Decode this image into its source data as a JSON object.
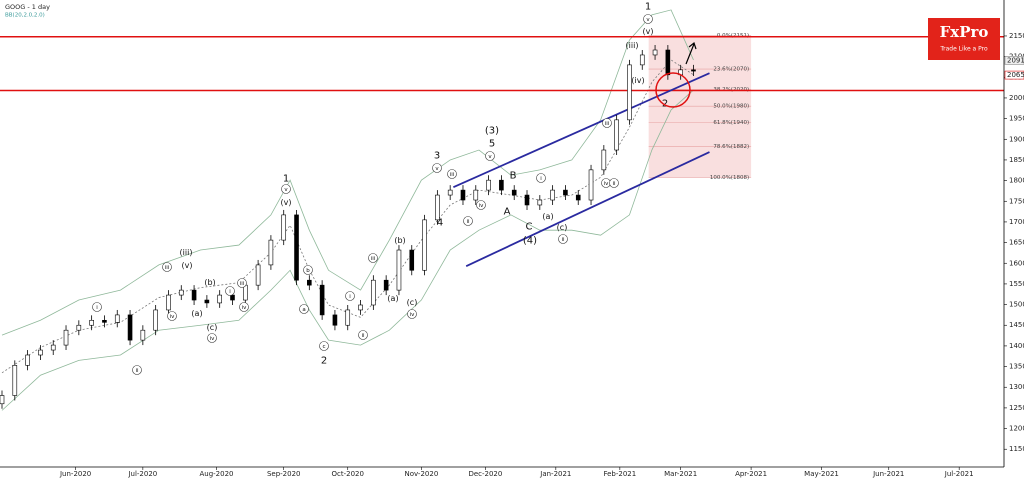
{
  "chart_data": {
    "type": "candlestick",
    "title": "GOOG  - 1 day",
    "subtitle": "BB(20,2.0,2.0)",
    "brand": {
      "name": "FxPro",
      "tagline": "Trade Like a Pro"
    },
    "x": [
      0,
      4,
      8,
      12,
      16,
      20,
      24,
      28,
      32,
      36,
      40,
      44,
      48,
      52,
      56,
      60,
      64,
      68,
      72,
      76,
      80,
      84,
      88,
      92,
      96,
      100,
      104,
      108,
      112,
      116,
      120,
      124,
      128,
      132,
      136,
      140,
      144,
      148,
      152,
      156,
      160,
      164,
      168,
      172,
      176,
      180,
      184,
      188,
      192,
      196,
      200,
      204,
      208,
      212,
      216
    ],
    "open": [
      1260,
      1280,
      1353,
      1378,
      1390,
      1402,
      1438,
      1450,
      1462,
      1457,
      1475,
      1414,
      1438,
      1487,
      1523,
      1535,
      1511,
      1504,
      1523,
      1511,
      1547,
      1596,
      1656,
      1717,
      1559,
      1547,
      1475,
      1450,
      1487,
      1499,
      1559,
      1535,
      1632,
      1583,
      1705,
      1765,
      1777,
      1753,
      1777,
      1801,
      1777,
      1765,
      1741,
      1753,
      1777,
      1765,
      1753,
      1826,
      1874,
      1947,
      2080,
      2104,
      2116,
      2056,
      2068
    ],
    "high": [
      1292,
      1365,
      1390,
      1402,
      1414,
      1450,
      1462,
      1474,
      1474,
      1487,
      1487,
      1450,
      1499,
      1535,
      1547,
      1547,
      1523,
      1535,
      1535,
      1559,
      1608,
      1668,
      1729,
      1729,
      1571,
      1559,
      1487,
      1499,
      1511,
      1571,
      1571,
      1644,
      1644,
      1717,
      1777,
      1789,
      1789,
      1789,
      1813,
      1813,
      1789,
      1777,
      1765,
      1789,
      1789,
      1777,
      1838,
      1886,
      1959,
      2092,
      2116,
      2128,
      2128,
      2080,
      2080
    ],
    "low": [
      1248,
      1268,
      1341,
      1366,
      1378,
      1390,
      1426,
      1438,
      1445,
      1445,
      1402,
      1402,
      1426,
      1475,
      1511,
      1499,
      1492,
      1492,
      1499,
      1499,
      1535,
      1584,
      1644,
      1547,
      1535,
      1463,
      1438,
      1438,
      1475,
      1487,
      1523,
      1523,
      1571,
      1571,
      1693,
      1753,
      1741,
      1741,
      1765,
      1765,
      1753,
      1729,
      1729,
      1741,
      1753,
      1741,
      1741,
      1814,
      1862,
      1935,
      2068,
      2092,
      2044,
      2044,
      2053
    ],
    "close": [
      1280,
      1353,
      1378,
      1390,
      1402,
      1438,
      1450,
      1462,
      1457,
      1475,
      1414,
      1438,
      1487,
      1523,
      1535,
      1511,
      1504,
      1523,
      1511,
      1547,
      1596,
      1656,
      1717,
      1559,
      1547,
      1475,
      1450,
      1487,
      1499,
      1559,
      1535,
      1632,
      1583,
      1705,
      1765,
      1777,
      1753,
      1777,
      1801,
      1777,
      1765,
      1741,
      1753,
      1777,
      1765,
      1753,
      1826,
      1874,
      1947,
      2080,
      2104,
      2116,
      2056,
      2068,
      2065
    ],
    "bands": {
      "x": [
        0,
        12,
        24,
        37,
        49,
        62,
        74,
        84,
        90,
        96,
        102,
        112,
        121,
        131,
        140,
        149,
        159,
        168,
        178,
        187,
        196,
        203,
        209,
        216
      ],
      "upper": [
        1426,
        1462,
        1511,
        1535,
        1596,
        1632,
        1644,
        1717,
        1801,
        1680,
        1583,
        1535,
        1656,
        1801,
        1850,
        1874,
        1813,
        1826,
        1850,
        1947,
        2140,
        2201,
        2213,
        2092
      ],
      "middle": [
        1335,
        1396,
        1438,
        1457,
        1517,
        1541,
        1553,
        1626,
        1692,
        1584,
        1499,
        1469,
        1547,
        1656,
        1741,
        1777,
        1765,
        1753,
        1765,
        1808,
        1929,
        2038,
        2092,
        2056
      ],
      "lower": [
        1244,
        1329,
        1365,
        1378,
        1438,
        1450,
        1462,
        1535,
        1583,
        1487,
        1414,
        1402,
        1438,
        1511,
        1632,
        1680,
        1717,
        1680,
        1680,
        1668,
        1717,
        1874,
        1971,
        2019
      ]
    },
    "channel": [
      {
        "x": [
          141,
          221
        ],
        "y": [
          1784,
          2060
        ]
      },
      {
        "x": [
          145,
          221
        ],
        "y": [
          1593,
          1869
        ]
      }
    ],
    "levels": [
      2148,
      2018
    ],
    "fibonacci": {
      "x_range": [
        202,
        234
      ],
      "levels": [
        {
          "value": 2151,
          "label": "0.0%(2151)"
        },
        {
          "value": 2070,
          "label": "23.6%(2070)"
        },
        {
          "value": 2020,
          "label": "38.2%(2020)"
        },
        {
          "value": 1980,
          "label": "50.0%(1980)"
        },
        {
          "value": 1940,
          "label": "61.8%(1940)"
        },
        {
          "value": 1882,
          "label": "78.6%(1882)"
        },
        {
          "value": 1808,
          "label": "100.0%(1808)"
        }
      ]
    },
    "price_tags": [
      2091,
      2065
    ],
    "annotations": [
      "1",
      "v",
      "(v)",
      "(iii)",
      "(iv)",
      "2",
      "iii",
      "iv",
      "ii",
      "(3)",
      "5",
      "v",
      "3",
      "v",
      "4",
      "iii",
      "iv",
      "ii",
      "B",
      "A",
      "C",
      "(4)",
      "(a)",
      "i",
      "(c)",
      "ii",
      "1",
      "v",
      "(v)",
      "(iii)",
      "(v)",
      "iii",
      "iv",
      "(b)",
      "(a)",
      "(c)",
      "iv",
      "i",
      "iii",
      "iv",
      "b",
      "a",
      "c",
      "2",
      "i",
      "ii",
      "iii",
      "(b)",
      "(a)",
      "(c)",
      "iv",
      "i",
      "ii"
    ],
    "xlim": [
      0,
      313
    ],
    "xticks": [
      {
        "value": 23,
        "label": "Jun-2020"
      },
      {
        "value": 44,
        "label": "Jul-2020"
      },
      {
        "value": 67,
        "label": "Aug-2020"
      },
      {
        "value": 88,
        "label": "Sep-2020"
      },
      {
        "value": 108,
        "label": "Oct-2020"
      },
      {
        "value": 131,
        "label": "Nov-2020"
      },
      {
        "value": 151,
        "label": "Dec-2020"
      },
      {
        "value": 173,
        "label": "Jan-2021"
      },
      {
        "value": 193,
        "label": "Feb-2021"
      },
      {
        "value": 212,
        "label": "Mar-2021"
      },
      {
        "value": 234,
        "label": "Apr-2021"
      },
      {
        "value": 256,
        "label": "May-2021"
      },
      {
        "value": 277,
        "label": "Jun-2021"
      },
      {
        "value": 299,
        "label": "Jul-2021"
      }
    ],
    "ylim": [
      1107,
      2237
    ],
    "yticks": [
      1150,
      1200,
      1250,
      1300,
      1350,
      1400,
      1450,
      1500,
      1550,
      1600,
      1650,
      1700,
      1750,
      1800,
      1850,
      1900,
      1950,
      2000,
      2050,
      2100,
      2150
    ],
    "grid": false
  }
}
